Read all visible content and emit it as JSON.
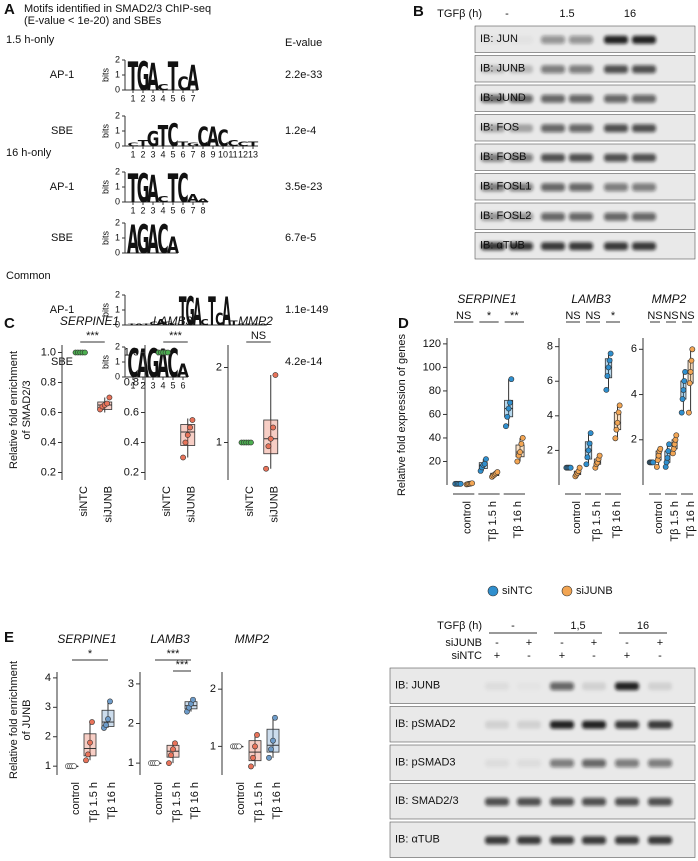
{
  "A": {
    "letter": "A",
    "title": [
      "Motifs identified in SMAD2/3 ChIP-seq",
      "(E-value < 1e-20) and SBEs"
    ],
    "evalue_header": "E-value",
    "bits_label": "bits",
    "bits_ticks": [
      0,
      1,
      2
    ],
    "groups": [
      {
        "name": "1.5 h-only",
        "motifs": [
          {
            "label": "AP-1",
            "evalue": "2.2e-33",
            "letters": [
              "T",
              "G",
              "A",
              "C",
              "T",
              "C",
              "A"
            ],
            "heights": [
              1.9,
              1.9,
              1.8,
              0.4,
              1.9,
              0.9,
              1.7
            ],
            "positions": [
              1,
              2,
              3,
              4,
              5,
              6,
              7
            ]
          },
          {
            "label": "SBE",
            "evalue": "1.2e-4",
            "letters": [
              "C",
              "T",
              "G",
              "T",
              "C",
              "T",
              "G",
              "C",
              "A",
              "C",
              "C",
              "C",
              "T"
            ],
            "heights": [
              0.2,
              0.4,
              1.0,
              1.4,
              1.5,
              0.3,
              0.2,
              1.3,
              1.3,
              1.1,
              0.4,
              0.3,
              0.3
            ],
            "positions": [
              1,
              2,
              3,
              4,
              5,
              6,
              7,
              8,
              9,
              10,
              11,
              12,
              13
            ]
          }
        ]
      },
      {
        "name": "16 h-only",
        "motifs": [
          {
            "label": "AP-1",
            "evalue": "3.5e-23",
            "letters": [
              "T",
              "G",
              "A",
              "C",
              "T",
              "C",
              "A",
              "A"
            ],
            "heights": [
              1.9,
              1.9,
              1.8,
              0.4,
              1.9,
              1.9,
              0.5,
              0.2
            ],
            "positions": [
              1,
              2,
              3,
              4,
              5,
              6,
              7,
              8
            ]
          },
          {
            "label": "SBE",
            "evalue": "6.7e-5",
            "letters": [
              "A",
              "G",
              "A",
              "C",
              "A"
            ],
            "heights": [
              1.9,
              1.9,
              1.9,
              1.9,
              1.1
            ]
          }
        ]
      },
      {
        "name": "Common",
        "motifs": [
          {
            "label": "AP-1",
            "evalue": "1.1e-149",
            "letters": [
              "T",
              "A",
              "T",
              "C",
              "A",
              "G",
              "C",
              "T",
              "G",
              "A",
              "C",
              "T",
              "C",
              "A",
              "T",
              "A",
              "T",
              "T",
              "A"
            ],
            "heights": [
              0.1,
              0.1,
              0.1,
              0.2,
              0.4,
              0.2,
              0.1,
              1.9,
              1.9,
              1.8,
              0.4,
              1.9,
              0.8,
              1.9,
              0.3,
              0.1,
              0.1,
              0.1,
              0.1
            ]
          },
          {
            "label": "SBE",
            "evalue": "4.2e-14",
            "letters": [
              "C",
              "A",
              "G",
              "A",
              "C",
              "A"
            ],
            "heights": [
              1.9,
              1.9,
              1.9,
              1.9,
              1.9,
              0.9
            ],
            "positions": [
              1,
              2,
              3,
              4,
              5,
              6
            ]
          }
        ]
      }
    ]
  },
  "B": {
    "letter": "B",
    "treatment": "TGFβ (h)",
    "timepoints": [
      "-",
      "1.5",
      "16"
    ],
    "blots": [
      "IB: JUN",
      "IB: JUNB",
      "IB: JUND",
      "IB: FOS",
      "IB: FOSB",
      "IB: FOSL1",
      "IB: FOSL2",
      "IB: αTUB"
    ]
  },
  "C": {
    "letter": "C",
    "ylabel": [
      "Relative fold enrichment",
      "of SMAD2/3"
    ],
    "plots": [
      {
        "gene": "SERPINE1",
        "ylim": [
          0.15,
          1.05
        ],
        "yticks": [
          0.2,
          0.4,
          0.6,
          0.8,
          {
            "value": 1,
            "label": "1.0"
          }
        ],
        "categories": [
          "siNTC",
          "siJUNB"
        ],
        "sig": [
          "***"
        ],
        "groups": [
          {
            "color": "#4caf50",
            "box": [
              1,
              1,
              1,
              1,
              1
            ],
            "points": [
              1,
              1,
              1,
              1,
              1
            ]
          },
          {
            "color": "#e8735a",
            "box": [
              0.6,
              0.62,
              0.65,
              0.67,
              0.7
            ],
            "points": [
              0.62,
              0.64,
              0.65,
              0.66,
              0.7
            ]
          }
        ]
      },
      {
        "gene": "LAMB3",
        "ylim": [
          0.15,
          1.05
        ],
        "yticks": [
          0.2,
          0.4,
          0.6,
          0.8,
          {
            "value": 1,
            "label": "1.0"
          }
        ],
        "categories": [
          "siNTC",
          "siJUNB"
        ],
        "sig": [
          "***"
        ],
        "groups": [
          {
            "color": "#4caf50",
            "box": [
              1,
              1,
              1,
              1,
              1
            ],
            "points": [
              1,
              1,
              1,
              1,
              1
            ]
          },
          {
            "color": "#e8735a",
            "box": [
              0.3,
              0.38,
              0.47,
              0.52,
              0.56
            ],
            "points": [
              0.3,
              0.4,
              0.45,
              0.5,
              0.55
            ]
          }
        ]
      },
      {
        "gene": "MMP2",
        "ylim": [
          0.5,
          2.3
        ],
        "yticks": [
          1,
          2
        ],
        "categories": [
          "siNTC",
          "siJUNB"
        ],
        "sig": [
          "NS"
        ],
        "groups": [
          {
            "color": "#4caf50",
            "box": [
              1,
              1,
              1,
              1,
              1
            ],
            "points": [
              1,
              1,
              1,
              1,
              1
            ]
          },
          {
            "color": "#e8735a",
            "box": [
              0.65,
              0.85,
              1.05,
              1.3,
              1.9
            ],
            "points": [
              0.65,
              0.95,
              1.05,
              1.2,
              1.9
            ]
          }
        ]
      }
    ]
  },
  "D": {
    "letter": "D",
    "ylabel": "Relative fold expression of genes",
    "series": [
      {
        "name": "siNTC",
        "color": "#2f8fce"
      },
      {
        "name": "siJUNB",
        "color": "#f2a553"
      }
    ],
    "plots": [
      {
        "gene": "SERPINE1",
        "ylim": [
          0,
          125
        ],
        "yticks": [
          20,
          40,
          60,
          80,
          100,
          120
        ],
        "categories": [
          "control",
          "Tβ 1.5 h",
          "Tβ 16 h"
        ],
        "sig": [
          "NS",
          "*",
          "**"
        ],
        "boxes": [
          [
            {
              "box": [
                1,
                1,
                1,
                1,
                1
              ],
              "points": [
                1,
                1,
                1,
                1,
                1
              ]
            },
            {
              "box": [
                0.5,
                0.8,
                1,
                1.2,
                1.5
              ],
              "points": [
                0.5,
                0.8,
                1,
                1.2,
                1.5
              ]
            }
          ],
          [
            {
              "box": [
                12,
                14,
                17,
                19,
                22
              ],
              "points": [
                12,
                15,
                17,
                18,
                22
              ]
            },
            {
              "box": [
                7,
                8,
                9,
                10,
                11
              ],
              "points": [
                7,
                8,
                9,
                10,
                11
              ]
            }
          ],
          [
            {
              "box": [
                50,
                58,
                65,
                72,
                90
              ],
              "points": [
                50,
                58,
                65,
                70,
                90
              ]
            },
            {
              "box": [
                20,
                24,
                28,
                34,
                40
              ],
              "points": [
                20,
                25,
                28,
                35,
                40
              ]
            }
          ]
        ]
      },
      {
        "gene": "LAMB3",
        "ylim": [
          0,
          8.5
        ],
        "yticks": [
          2,
          4,
          6,
          8
        ],
        "categories": [
          "control",
          "Tβ 1.5 h",
          "Tβ 16 h"
        ],
        "sig": [
          "NS",
          "NS",
          "*"
        ],
        "boxes": [
          [
            {
              "box": [
                1,
                1,
                1,
                1,
                1
              ],
              "points": [
                1,
                1,
                1,
                1,
                1
              ]
            },
            {
              "box": [
                0.5,
                0.6,
                0.7,
                0.8,
                1.0
              ],
              "points": [
                0.5,
                0.6,
                0.7,
                0.8,
                1.0
              ]
            }
          ],
          [
            {
              "box": [
                1.2,
                1.5,
                2,
                2.5,
                3
              ],
              "points": [
                1.2,
                1.6,
                2,
                2.4,
                3
              ]
            },
            {
              "box": [
                1,
                1.2,
                1.3,
                1.5,
                1.7
              ],
              "points": [
                1,
                1.2,
                1.3,
                1.5,
                1.7
              ]
            }
          ],
          [
            {
              "box": [
                5.5,
                6.2,
                6.8,
                7.3,
                7.6
              ],
              "points": [
                5.5,
                6.3,
                6.8,
                7.2,
                7.6
              ]
            },
            {
              "box": [
                2.7,
                3.2,
                3.6,
                4.2,
                4.6
              ],
              "points": [
                2.7,
                3.2,
                3.6,
                4.2,
                4.6
              ]
            }
          ]
        ]
      },
      {
        "gene": "MMP2",
        "ylim": [
          0,
          6.5
        ],
        "yticks": [
          2,
          4,
          6
        ],
        "categories": [
          "control",
          "Tβ 1.5 h",
          "Tβ 16 h"
        ],
        "sig": [
          "NS",
          "NS",
          "NS"
        ],
        "boxes": [
          [
            {
              "box": [
                1,
                1,
                1,
                1,
                1
              ],
              "points": [
                1,
                1,
                1,
                1,
                1
              ]
            },
            {
              "box": [
                0.8,
                1.1,
                1.3,
                1.5,
                1.6
              ],
              "points": [
                0.8,
                1.1,
                1.3,
                1.5,
                1.6
              ]
            }
          ],
          [
            {
              "box": [
                0.8,
                1,
                1.2,
                1.5,
                1.8
              ],
              "points": [
                0.8,
                1,
                1.2,
                1.5,
                1.8
              ]
            },
            {
              "box": [
                1.4,
                1.6,
                1.8,
                2,
                2.2
              ],
              "points": [
                1.4,
                1.6,
                1.8,
                2,
                2.2
              ]
            }
          ],
          [
            {
              "box": [
                3.2,
                3.8,
                4.2,
                4.6,
                5
              ],
              "points": [
                3.2,
                3.8,
                4.2,
                4.6,
                5
              ]
            },
            {
              "box": [
                3.2,
                4.5,
                5,
                5.5,
                6
              ],
              "points": [
                3.2,
                4.5,
                5,
                5.5,
                6
              ]
            }
          ]
        ]
      }
    ]
  },
  "E": {
    "letter": "E",
    "ylabel": [
      "Relative fold enrichment",
      "of JUNB"
    ],
    "plots": [
      {
        "gene": "SERPINE1",
        "ylim": [
          0.7,
          4.2
        ],
        "yticks": [
          1,
          2,
          3,
          4
        ],
        "categories": [
          "control",
          "Tβ 1.5 h",
          "Tβ 16 h"
        ],
        "sig": [
          "*"
        ],
        "groups": [
          {
            "color": "#ffffff",
            "box": [
              1,
              1,
              1,
              1,
              1
            ],
            "points": [
              1,
              1,
              1,
              1
            ]
          },
          {
            "color": "#e8735a",
            "box": [
              1.2,
              1.35,
              1.6,
              2.1,
              2.5
            ],
            "points": [
              1.2,
              1.4,
              1.8,
              2.5
            ]
          },
          {
            "color": "#6d9bc9",
            "box": [
              2.3,
              2.35,
              2.5,
              2.9,
              3.2
            ],
            "points": [
              2.3,
              2.4,
              2.6,
              3.2
            ]
          }
        ]
      },
      {
        "gene": "LAMB3",
        "ylim": [
          0.7,
          3.3
        ],
        "yticks": [
          1,
          2,
          3
        ],
        "categories": [
          "control",
          "Tβ 1.5 h",
          "Tβ 16 h"
        ],
        "sig": [
          "***",
          "***"
        ],
        "groups": [
          {
            "color": "#ffffff",
            "box": [
              1,
              1,
              1,
              1,
              1
            ],
            "points": [
              1,
              1,
              1,
              1
            ]
          },
          {
            "color": "#e8735a",
            "box": [
              1,
              1.15,
              1.3,
              1.45,
              1.55
            ],
            "points": [
              1,
              1.2,
              1.35,
              1.5
            ]
          },
          {
            "color": "#6d9bc9",
            "box": [
              2.3,
              2.37,
              2.45,
              2.55,
              2.6
            ],
            "points": [
              2.3,
              2.4,
              2.5,
              2.6
            ]
          }
        ]
      },
      {
        "gene": "MMP2",
        "ylim": [
          0.5,
          2.3
        ],
        "yticks": [
          1,
          2
        ],
        "categories": [
          "control",
          "Tβ 1.5 h",
          "Tβ 16 h"
        ],
        "sig": [],
        "groups": [
          {
            "color": "#ffffff",
            "box": [
              1,
              1,
              1,
              1,
              1
            ],
            "points": [
              1,
              1,
              1,
              1
            ]
          },
          {
            "color": "#e8735a",
            "box": [
              0.65,
              0.75,
              0.9,
              1.1,
              1.2
            ],
            "points": [
              0.65,
              0.8,
              1,
              1.2
            ]
          },
          {
            "color": "#6d9bc9",
            "box": [
              0.8,
              0.9,
              1.02,
              1.3,
              1.5
            ],
            "points": [
              0.8,
              0.95,
              1.1,
              1.5
            ]
          }
        ]
      }
    ],
    "blot": {
      "treatment": "TGFβ (h)",
      "timepoints": [
        "-",
        "1,5",
        "16"
      ],
      "rows": [
        {
          "name": "siJUNB",
          "marks": [
            "-",
            "+",
            "-",
            "+",
            "-",
            "+"
          ]
        },
        {
          "name": "siNTC",
          "marks": [
            "+",
            "-",
            "+",
            "-",
            "+",
            "-"
          ]
        }
      ],
      "blots": [
        "IB: JUNB",
        "IB: pSMAD2",
        "IB: pSMAD3",
        "IB: SMAD2/3",
        "IB: αTUB"
      ]
    }
  }
}
